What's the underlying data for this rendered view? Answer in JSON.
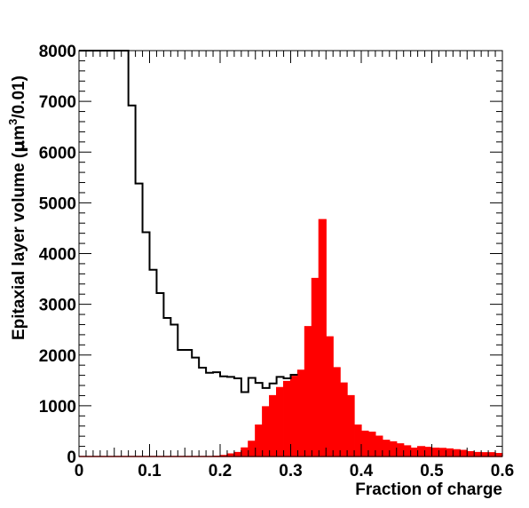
{
  "chart_data": {
    "type": "histogram",
    "xlabel": "Fraction of charge",
    "ylabel": {
      "prefix": "Epitaxial layer volume (",
      "mu": "μ",
      "unit": "m",
      "sup": "3",
      "suffix": "/0.01)"
    },
    "xlim": [
      0,
      0.6
    ],
    "ylim": [
      0,
      8000
    ],
    "x_ticks": [
      "0",
      "0.1",
      "0.2",
      "0.3",
      "0.4",
      "0.5",
      "0.6"
    ],
    "y_ticks": [
      "0",
      "1000",
      "2000",
      "3000",
      "4000",
      "5000",
      "6000",
      "7000",
      "8000"
    ],
    "bin_width": 0.01,
    "grid": false,
    "series": [
      {
        "style": "outline",
        "color": "#000000",
        "bin_start": 0.0,
        "values": [
          8000,
          8000,
          8000,
          8000,
          8000,
          8000,
          8000,
          6920,
          5380,
          4420,
          3680,
          3220,
          2730,
          2600,
          2100,
          2100,
          1950,
          1750,
          1650,
          1660,
          1580,
          1570,
          1540,
          1270,
          1550,
          1450,
          1350,
          1440,
          1570,
          1540,
          1610
        ]
      },
      {
        "style": "filled",
        "color": "#ff0000",
        "bin_start": 0.19,
        "values": [
          5,
          20,
          50,
          80,
          170,
          300,
          620,
          980,
          1200,
          1360,
          1480,
          1580,
          1700,
          2560,
          3510,
          4670,
          2360,
          1750,
          1450,
          1200,
          620,
          500,
          480,
          400,
          320,
          290,
          250,
          210,
          165,
          195,
          180,
          165,
          160,
          150,
          135,
          120,
          95,
          80,
          75,
          75,
          60
        ]
      }
    ]
  }
}
